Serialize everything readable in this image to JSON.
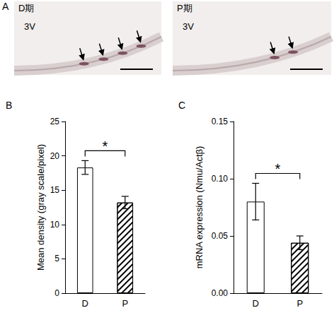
{
  "panel_a": {
    "label": "A",
    "images": [
      {
        "title": "D期",
        "region": "3V",
        "arrows": 4
      },
      {
        "title": "P期",
        "region": "3V",
        "arrows": 2
      }
    ]
  },
  "chart_data": [
    {
      "label": "B",
      "type": "bar",
      "categories": [
        "D",
        "P"
      ],
      "values": [
        18.3,
        13.2
      ],
      "errors": [
        1.0,
        0.9
      ],
      "color": "#ffffff",
      "y_label": "Mean density (gray scale/pixel)",
      "ylim": [
        0,
        25
      ],
      "yticks": [
        0,
        5,
        10,
        15,
        20,
        25
      ],
      "annotation": "*",
      "grid": false
    },
    {
      "label": "C",
      "type": "bar",
      "categories": [
        "D",
        "P"
      ],
      "values": [
        0.08,
        0.044
      ],
      "errors": [
        0.016,
        0.006
      ],
      "color": "#ffffff",
      "y_label": "mRNA expression (Nmu/Actβ)",
      "ylim": [
        0,
        0.15
      ],
      "yticks": [
        {
          "value": 0,
          "label": "0.00"
        },
        {
          "value": 0.05,
          "label": "0.05"
        },
        {
          "value": 0.1,
          "label": "0.10"
        },
        {
          "value": 0.15,
          "label": "0.15"
        }
      ],
      "annotation": "*",
      "grid": false
    }
  ]
}
